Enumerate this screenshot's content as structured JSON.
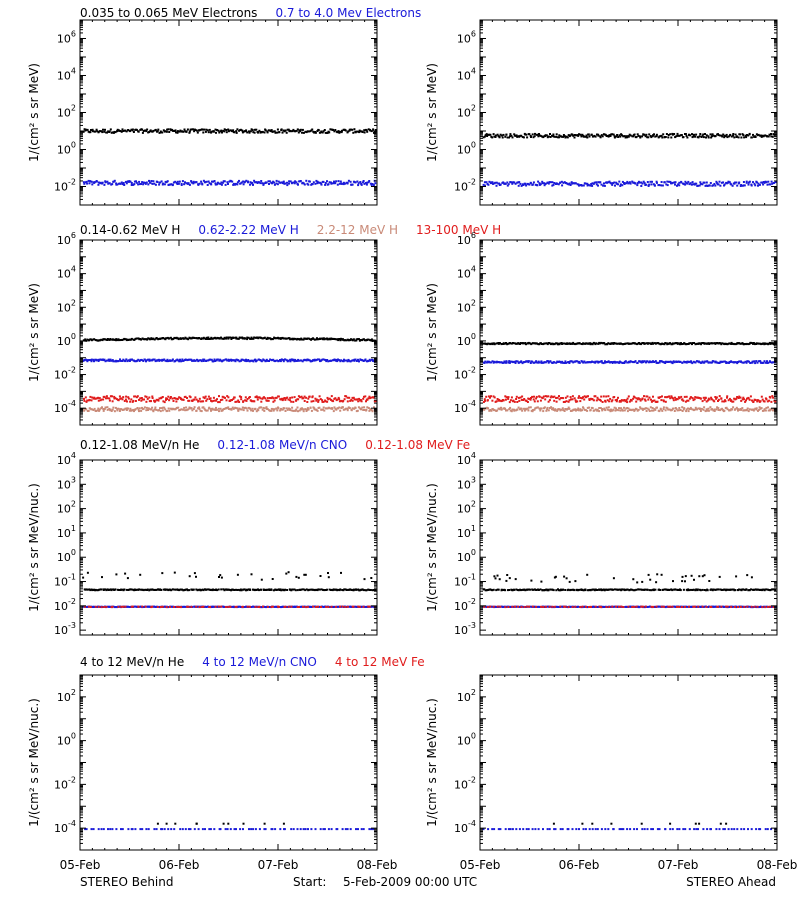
{
  "colors": {
    "black": "#000000",
    "blue": "#1a1ad9",
    "red": "#e01c1c",
    "salmon": "#c98a78"
  },
  "x_axis": {
    "start": "05-Feb",
    "end": "08-Feb",
    "ticks": [
      "05-Feb",
      "06-Feb",
      "07-Feb",
      "08-Feb"
    ],
    "tick_values": [
      0,
      1,
      2,
      3
    ]
  },
  "footer": {
    "left": "STEREO Behind",
    "start_label": "Start:",
    "start_value": "5-Feb-2009 00:00 UTC",
    "right": "STEREO Ahead"
  },
  "chart_data": [
    {
      "type": "scatter",
      "row_title": [
        {
          "text": "0.035 to 0.065 MeV Electrons",
          "color": "#000000"
        },
        {
          "text": "0.7 to 4.0 Mev Electrons",
          "color": "#1a1ad9"
        }
      ],
      "ylabel": "1/(cm² s sr MeV)",
      "ylim_log10": [
        -3,
        7
      ],
      "yticks": [
        {
          "label": "10",
          "exp": "-2",
          "value": -2
        },
        {
          "label": "10",
          "exp": "0",
          "value": 0
        },
        {
          "label": "10",
          "exp": "2",
          "value": 2
        },
        {
          "label": "10",
          "exp": "4",
          "value": 4
        },
        {
          "label": "10",
          "exp": "6",
          "value": 6
        }
      ],
      "panels": [
        {
          "name": "STEREO Behind",
          "series": [
            {
              "name": "0.035 to 0.065 MeV Electrons",
              "color": "#000000",
              "log10": 1.05,
              "spread": 0.1
            },
            {
              "name": "0.7 to 4.0 Mev Electrons",
              "color": "#1a1ad9",
              "log10": -1.75,
              "spread": 0.12
            }
          ]
        },
        {
          "name": "STEREO Ahead",
          "series": [
            {
              "name": "0.035 to 0.065 MeV Electrons",
              "color": "#000000",
              "log10": 0.8,
              "spread": 0.1
            },
            {
              "name": "0.7 to 4.0 Mev Electrons",
              "color": "#1a1ad9",
              "log10": -1.8,
              "spread": 0.12
            }
          ]
        }
      ]
    },
    {
      "type": "scatter",
      "row_title": [
        {
          "text": "0.14-0.62 MeV H",
          "color": "#000000"
        },
        {
          "text": "0.62-2.22 MeV H",
          "color": "#1a1ad9"
        },
        {
          "text": "2.2-12 MeV H",
          "color": "#c98a78"
        },
        {
          "text": "13-100 MeV H",
          "color": "#e01c1c"
        }
      ],
      "ylabel": "1/(cm² s sr MeV)",
      "ylim_log10": [
        -5,
        6
      ],
      "yticks": [
        {
          "label": "10",
          "exp": "-4",
          "value": -4
        },
        {
          "label": "10",
          "exp": "-2",
          "value": -2
        },
        {
          "label": "10",
          "exp": "0",
          "value": 0
        },
        {
          "label": "10",
          "exp": "2",
          "value": 2
        },
        {
          "label": "10",
          "exp": "4",
          "value": 4
        },
        {
          "label": "10",
          "exp": "6",
          "value": 6
        }
      ],
      "panels": [
        {
          "name": "STEREO Behind",
          "series": [
            {
              "name": "0.14-0.62 MeV H",
              "color": "#000000",
              "log10": 0.1,
              "spread": 0.05,
              "bump": 0.15
            },
            {
              "name": "0.62-2.22 MeV H",
              "color": "#1a1ad9",
              "log10": -1.1,
              "spread": 0.06
            },
            {
              "name": "13-100 MeV H",
              "color": "#e01c1c",
              "log10": -3.4,
              "spread": 0.18
            },
            {
              "name": "2.2-12 MeV H",
              "color": "#c98a78",
              "log10": -4.0,
              "spread": 0.12
            }
          ]
        },
        {
          "name": "STEREO Ahead",
          "series": [
            {
              "name": "0.14-0.62 MeV H",
              "color": "#000000",
              "log10": -0.1,
              "spread": 0.04
            },
            {
              "name": "0.62-2.22 MeV H",
              "color": "#1a1ad9",
              "log10": -1.2,
              "spread": 0.06
            },
            {
              "name": "13-100 MeV H",
              "color": "#e01c1c",
              "log10": -3.4,
              "spread": 0.18
            },
            {
              "name": "2.2-12 MeV H",
              "color": "#c98a78",
              "log10": -4.0,
              "spread": 0.12
            }
          ]
        }
      ]
    },
    {
      "type": "scatter",
      "row_title": [
        {
          "text": "0.12-1.08 MeV/n He",
          "color": "#000000"
        },
        {
          "text": "0.12-1.08 MeV/n CNO",
          "color": "#1a1ad9"
        },
        {
          "text": "0.12-1.08 MeV Fe",
          "color": "#e01c1c"
        }
      ],
      "ylabel": "1/(cm² s sr MeV/nuc.)",
      "ylim_log10": [
        -3.2,
        4
      ],
      "yticks": [
        {
          "label": "10",
          "exp": "-3",
          "value": -3
        },
        {
          "label": "10",
          "exp": "-2",
          "value": -2
        },
        {
          "label": "10",
          "exp": "-1",
          "value": -1
        },
        {
          "label": "10",
          "exp": "0",
          "value": 0
        },
        {
          "label": "10",
          "exp": "1",
          "value": 1
        },
        {
          "label": "10",
          "exp": "2",
          "value": 2
        },
        {
          "label": "10",
          "exp": "3",
          "value": 3
        },
        {
          "label": "10",
          "exp": "4",
          "value": 4
        }
      ],
      "panels": [
        {
          "name": "STEREO Behind",
          "series": [
            {
              "name": "0.12-1.08 MeV/n He",
              "color": "#000000",
              "log10": -1.3,
              "spread": 0.02,
              "scatter_high": -0.9
            },
            {
              "name": "0.12-1.08 MeV/n CNO",
              "color": "#1a1ad9",
              "log10": -2.0,
              "spread": 0.01
            },
            {
              "name": "0.12-1.08 MeV Fe",
              "color": "#e01c1c",
              "log10": -2.0,
              "spread": 0.01,
              "sparse": true
            }
          ]
        },
        {
          "name": "STEREO Ahead",
          "series": [
            {
              "name": "0.12-1.08 MeV/n He",
              "color": "#000000",
              "log10": -1.3,
              "spread": 0.02,
              "scatter_high": -1.0
            },
            {
              "name": "0.12-1.08 MeV/n CNO",
              "color": "#1a1ad9",
              "log10": -2.0,
              "spread": 0.01
            },
            {
              "name": "0.12-1.08 MeV Fe",
              "color": "#e01c1c",
              "log10": -2.0,
              "spread": 0.01,
              "sparse": true
            }
          ]
        }
      ]
    },
    {
      "type": "scatter",
      "row_title": [
        {
          "text": "4 to 12 MeV/n He",
          "color": "#000000"
        },
        {
          "text": "4 to 12 MeV/n CNO",
          "color": "#1a1ad9"
        },
        {
          "text": "4 to 12 MeV Fe",
          "color": "#e01c1c"
        }
      ],
      "ylabel": "1/(cm² s sr MeV/nuc.)",
      "ylim_log10": [
        -5,
        3
      ],
      "yticks": [
        {
          "label": "10",
          "exp": "-4",
          "value": -4
        },
        {
          "label": "10",
          "exp": "-2",
          "value": -2
        },
        {
          "label": "10",
          "exp": "0",
          "value": 0
        },
        {
          "label": "10",
          "exp": "2",
          "value": 2
        }
      ],
      "panels": [
        {
          "name": "STEREO Behind",
          "series": [
            {
              "name": "4 to 12 MeV/n CNO",
              "color": "#1a1ad9",
              "log10": -4.0,
              "spread": 0.0,
              "sparse": true
            },
            {
              "name": "4 to 12 MeV/n He",
              "color": "#000000",
              "log10": -3.75,
              "spread": 0.0,
              "rare": true
            }
          ]
        },
        {
          "name": "STEREO Ahead",
          "series": [
            {
              "name": "4 to 12 MeV/n CNO",
              "color": "#1a1ad9",
              "log10": -4.0,
              "spread": 0.0,
              "sparse": true
            },
            {
              "name": "4 to 12 MeV/n He",
              "color": "#000000",
              "log10": -3.75,
              "spread": 0.0,
              "rare": true
            }
          ]
        }
      ]
    }
  ]
}
